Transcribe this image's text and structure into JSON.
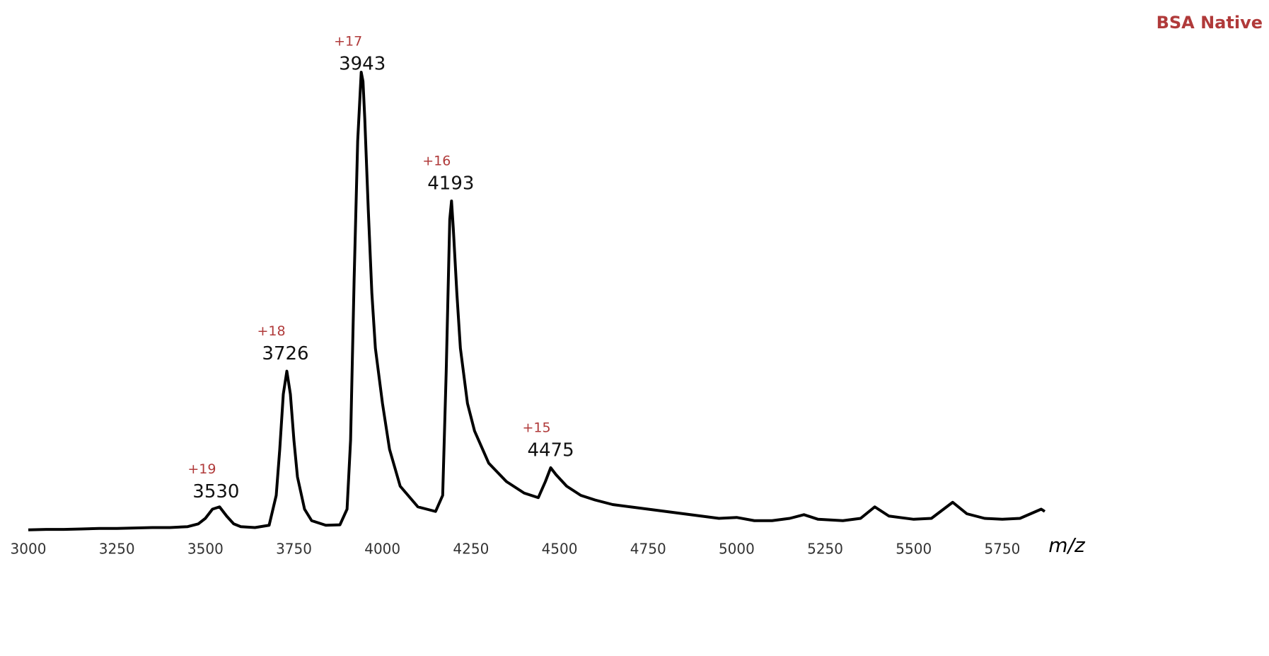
{
  "chart_data": {
    "type": "line",
    "title": "BSA Native",
    "x_label": "m/z",
    "x": [
      3000,
      3050,
      3100,
      3150,
      3200,
      3250,
      3300,
      3350,
      3400,
      3450,
      3480,
      3500,
      3520,
      3540,
      3560,
      3580,
      3600,
      3640,
      3680,
      3700,
      3710,
      3720,
      3730,
      3740,
      3750,
      3760,
      3780,
      3800,
      3840,
      3880,
      3900,
      3910,
      3920,
      3930,
      3940,
      3945,
      3950,
      3960,
      3970,
      3980,
      4000,
      4020,
      4050,
      4100,
      4150,
      4170,
      4180,
      4190,
      4195,
      4200,
      4210,
      4220,
      4240,
      4260,
      4300,
      4350,
      4400,
      4440,
      4460,
      4475,
      4490,
      4520,
      4560,
      4600,
      4650,
      4700,
      4750,
      4800,
      4850,
      4900,
      4950,
      5000,
      5050,
      5100,
      5150,
      5190,
      5230,
      5300,
      5350,
      5390,
      5430,
      5500,
      5550,
      5610,
      5650,
      5700,
      5750,
      5800,
      5860,
      5870
    ],
    "series": [
      {
        "name": "BSA Native",
        "color": "#000000",
        "values": [
          0.5,
          0.6,
          0.6,
          0.7,
          0.8,
          0.8,
          0.9,
          1.0,
          1.0,
          1.2,
          1.8,
          3.0,
          5.0,
          5.5,
          3.5,
          1.8,
          1.2,
          1.0,
          1.5,
          8,
          18,
          30,
          35,
          30,
          20,
          12,
          5,
          2.5,
          1.5,
          1.6,
          5,
          20,
          55,
          85,
          100,
          98,
          90,
          70,
          52,
          40,
          28,
          18,
          10,
          5.5,
          4.5,
          8,
          35,
          68,
          72,
          66,
          52,
          40,
          28,
          22,
          15,
          11,
          8.5,
          7.5,
          11,
          14,
          12.5,
          10,
          8,
          7,
          6,
          5.5,
          5,
          4.5,
          4,
          3.5,
          3,
          3.2,
          2.5,
          2.5,
          3,
          3.8,
          2.8,
          2.5,
          3,
          5.5,
          3.5,
          2.8,
          3,
          6.5,
          4,
          3,
          2.8,
          3,
          5,
          4.5
        ]
      }
    ],
    "annotations": [
      {
        "label": "+19",
        "value": 3530
      },
      {
        "label": "+18",
        "value": 3726
      },
      {
        "label": "+17",
        "value": 3943
      },
      {
        "label": "+16",
        "value": 4193
      },
      {
        "label": "+15",
        "value": 4475
      }
    ],
    "xlim": [
      3000,
      5870
    ],
    "ylim": [
      -2,
      108
    ],
    "xticks": [
      3000,
      3250,
      3500,
      3750,
      4000,
      4250,
      4500,
      4750,
      5000,
      5250,
      5500,
      5750
    ],
    "title_color": "#b03a3a",
    "annotation_color": "#b03a3a"
  }
}
